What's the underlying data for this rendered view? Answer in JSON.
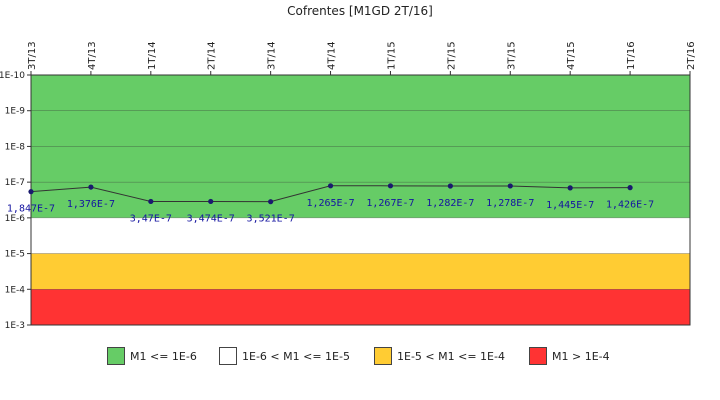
{
  "chart_data": {
    "type": "line",
    "title": "Cofrentes [M1GD 2T/16]",
    "categories": [
      "3T/13",
      "4T/13",
      "1T/14",
      "2T/14",
      "3T/14",
      "4T/14",
      "1T/15",
      "2T/15",
      "3T/15",
      "4T/15",
      "1T/16",
      "2T/16"
    ],
    "y_scale": "log",
    "y_axis_inverted": true,
    "y_ticks": [
      "1E-10",
      "1E-9",
      "1E-8",
      "1E-7",
      "1E-6",
      "1E-5",
      "1E-4",
      "1E-3"
    ],
    "ylim": [
      1e-10,
      0.001
    ],
    "series": [
      {
        "values": [
          1.847e-07,
          1.376e-07,
          3.47e-07,
          3.474e-07,
          3.521e-07,
          1.265e-07,
          1.267e-07,
          1.282e-07,
          1.278e-07,
          1.445e-07,
          1.426e-07,
          null
        ],
        "labels": [
          "1,847E-7",
          "1,376E-7",
          "3,47E-7",
          "3,474E-7",
          "3,521E-7",
          "1,265E-7",
          "1,267E-7",
          "1,282E-7",
          "1,278E-7",
          "1,445E-7",
          "1,426E-7",
          ""
        ],
        "color": "#1a1a6e"
      }
    ],
    "bands": [
      {
        "from": 1e-10,
        "to": 1e-06,
        "color": "#66cc66",
        "label": "M1 <= 1E-6"
      },
      {
        "from": 1e-06,
        "to": 1e-05,
        "color": "#ffffff",
        "label": "1E-6 < M1 <= 1E-5"
      },
      {
        "from": 1e-05,
        "to": 0.0001,
        "color": "#ffcc33",
        "label": "1E-5 < M1 <= 1E-4"
      },
      {
        "from": 0.0001,
        "to": 0.001,
        "color": "#ff3333",
        "label": "M1 > 1E-4"
      }
    ],
    "legend_position": "bottom"
  }
}
